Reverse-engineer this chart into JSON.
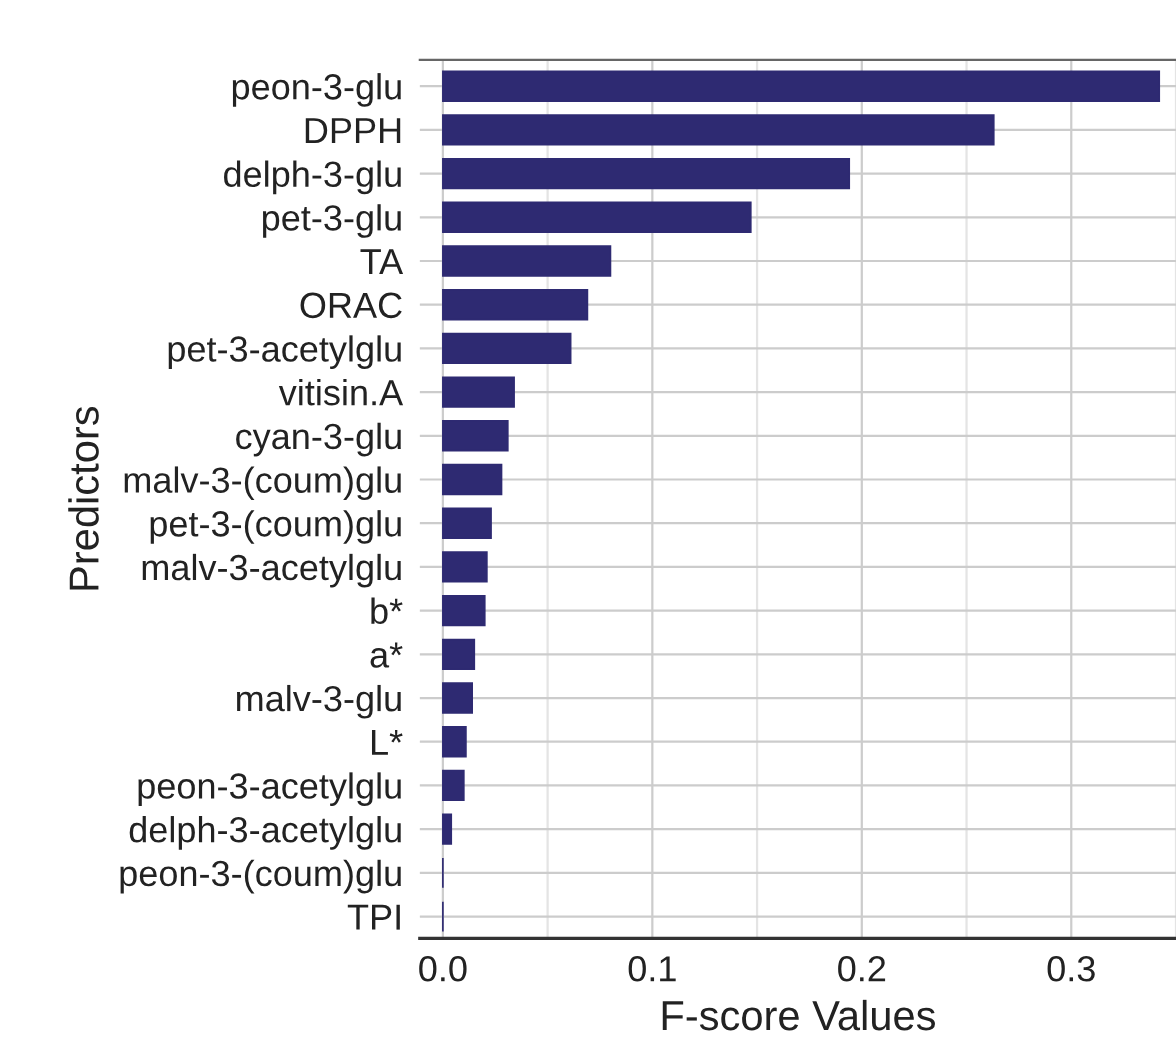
{
  "chart_data": {
    "type": "bar",
    "orientation": "horizontal",
    "xlabel": "F-score Values",
    "ylabel": "Predictors",
    "categories": [
      "peon-3-glu",
      "DPPH",
      "delph-3-glu",
      "pet-3-glu",
      "TA",
      "ORAC",
      "pet-3-acetylglu",
      "vitisin.A",
      "cyan-3-glu",
      "malv-3-(coum)glu",
      "pet-3-(coum)glu",
      "malv-3-acetylglu",
      "b*",
      "a*",
      "malv-3-glu",
      "L*",
      "peon-3-acetylglu",
      "delph-3-acetylglu",
      "peon-3-(coum)glu",
      "TPI"
    ],
    "values": [
      0.342,
      0.263,
      0.194,
      0.147,
      0.08,
      0.069,
      0.061,
      0.034,
      0.031,
      0.028,
      0.023,
      0.021,
      0.02,
      0.015,
      0.014,
      0.011,
      0.01,
      0.004,
      0,
      0
    ],
    "color": "#2e2a72",
    "xlim": [
      -0.011,
      0.35
    ],
    "xticks": [
      {
        "value": 0,
        "label": "0.0"
      },
      {
        "value": 0.05,
        "label": null
      },
      0.1,
      {
        "value": 0.15,
        "label": null
      },
      0.2,
      {
        "value": 0.25,
        "label": null
      },
      0.3,
      {
        "value": 0.35,
        "label": null
      }
    ],
    "grid": true,
    "legend": false
  }
}
